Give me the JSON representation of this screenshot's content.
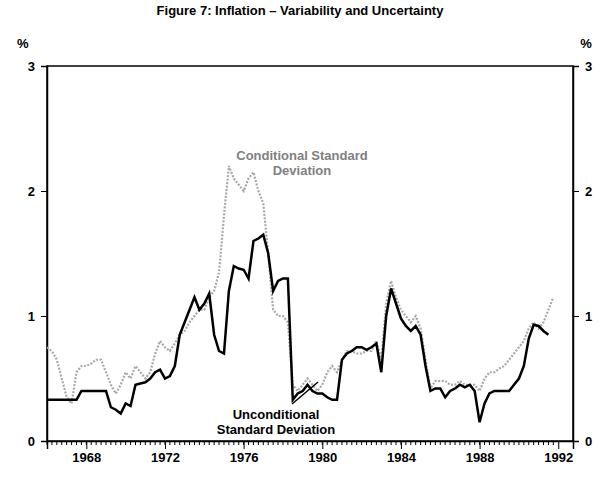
{
  "chart_data": {
    "type": "line",
    "title": "Figure 7: Inflation – Variability and Uncertainty",
    "y_label": "%",
    "x": [
      1966,
      1966.25,
      1966.5,
      1966.75,
      1967,
      1967.25,
      1967.5,
      1967.75,
      1968,
      1968.25,
      1968.5,
      1968.75,
      1969,
      1969.25,
      1969.5,
      1969.75,
      1970,
      1970.25,
      1970.5,
      1970.75,
      1971,
      1971.25,
      1971.5,
      1971.75,
      1972,
      1972.25,
      1972.5,
      1972.75,
      1973,
      1973.25,
      1973.5,
      1973.75,
      1974,
      1974.25,
      1974.5,
      1974.75,
      1975,
      1975.25,
      1975.5,
      1975.75,
      1976,
      1976.25,
      1976.5,
      1976.75,
      1977,
      1977.25,
      1977.5,
      1977.75,
      1978,
      1978.25,
      1978.5,
      1978.75,
      1979,
      1979.25,
      1979.5,
      1979.75,
      1980,
      1980.25,
      1980.5,
      1980.75,
      1981,
      1981.25,
      1981.5,
      1981.75,
      1982,
      1982.25,
      1982.5,
      1982.75,
      1983,
      1983.25,
      1983.5,
      1983.75,
      1984,
      1984.25,
      1984.5,
      1984.75,
      1985,
      1985.25,
      1985.5,
      1985.75,
      1986,
      1986.25,
      1986.5,
      1986.75,
      1987,
      1987.25,
      1987.5,
      1987.75,
      1988,
      1988.25,
      1988.5,
      1988.75,
      1989,
      1989.25,
      1989.5,
      1989.75,
      1990,
      1990.25,
      1990.5,
      1990.75,
      1991,
      1991.25,
      1991.5,
      1991.75
    ],
    "series": [
      {
        "name": "Conditional Standard Deviation",
        "color": "#a8a8a8",
        "line_style": "dotted",
        "values": [
          0.75,
          0.72,
          0.65,
          0.5,
          0.35,
          0.3,
          0.55,
          0.6,
          0.6,
          0.62,
          0.65,
          0.65,
          0.55,
          0.45,
          0.38,
          0.45,
          0.55,
          0.5,
          0.6,
          0.55,
          0.5,
          0.55,
          0.7,
          0.8,
          0.75,
          0.72,
          0.78,
          0.85,
          0.88,
          0.95,
          1.0,
          1.05,
          1.05,
          1.15,
          1.2,
          1.35,
          1.8,
          2.2,
          2.1,
          2.05,
          2.0,
          2.1,
          2.15,
          2.0,
          1.9,
          1.5,
          1.05,
          1.0,
          1.0,
          0.95,
          0.45,
          0.4,
          0.45,
          0.5,
          0.45,
          0.4,
          0.45,
          0.55,
          0.6,
          0.55,
          0.65,
          0.72,
          0.72,
          0.7,
          0.7,
          0.72,
          0.72,
          0.8,
          0.65,
          1.1,
          1.28,
          1.15,
          1.05,
          1.0,
          0.95,
          1.0,
          0.9,
          0.65,
          0.42,
          0.48,
          0.48,
          0.48,
          0.45,
          0.45,
          0.48,
          0.45,
          0.45,
          0.45,
          0.4,
          0.5,
          0.55,
          0.55,
          0.58,
          0.6,
          0.65,
          0.7,
          0.75,
          0.8,
          0.9,
          0.95,
          0.9,
          0.95,
          1.05,
          1.15
        ]
      },
      {
        "name": "Unconditional Standard Deviation",
        "color": "#000000",
        "line_style": "solid",
        "values": [
          0.33,
          0.33,
          0.33,
          0.33,
          0.33,
          0.33,
          0.33,
          0.4,
          0.4,
          0.4,
          0.4,
          0.4,
          0.4,
          0.27,
          0.25,
          0.22,
          0.3,
          0.28,
          0.45,
          0.46,
          0.47,
          0.5,
          0.55,
          0.57,
          0.5,
          0.52,
          0.6,
          0.85,
          0.95,
          1.05,
          1.15,
          1.05,
          1.1,
          1.18,
          0.85,
          0.72,
          0.7,
          1.2,
          1.4,
          1.38,
          1.37,
          1.3,
          1.6,
          1.62,
          1.65,
          1.5,
          1.2,
          1.28,
          1.3,
          1.3,
          0.33,
          0.38,
          0.4,
          0.45,
          0.4,
          0.38,
          0.38,
          0.35,
          0.33,
          0.33,
          0.65,
          0.7,
          0.72,
          0.75,
          0.75,
          0.73,
          0.75,
          0.78,
          0.55,
          1.0,
          1.22,
          1.1,
          0.98,
          0.92,
          0.88,
          0.92,
          0.85,
          0.6,
          0.4,
          0.42,
          0.42,
          0.35,
          0.4,
          0.42,
          0.45,
          0.43,
          0.45,
          0.4,
          0.15,
          0.3,
          0.38,
          0.4,
          0.4,
          0.4,
          0.4,
          0.45,
          0.5,
          0.6,
          0.82,
          0.93,
          0.92,
          0.88,
          0.85,
          null
        ]
      }
    ],
    "xlim": [
      1966,
      1992.75
    ],
    "ylim": [
      0,
      3
    ],
    "xticks": [
      1968,
      1972,
      1976,
      1980,
      1984,
      1988,
      1992
    ],
    "yticks": [
      0,
      1,
      2,
      3
    ],
    "grid": false
  }
}
